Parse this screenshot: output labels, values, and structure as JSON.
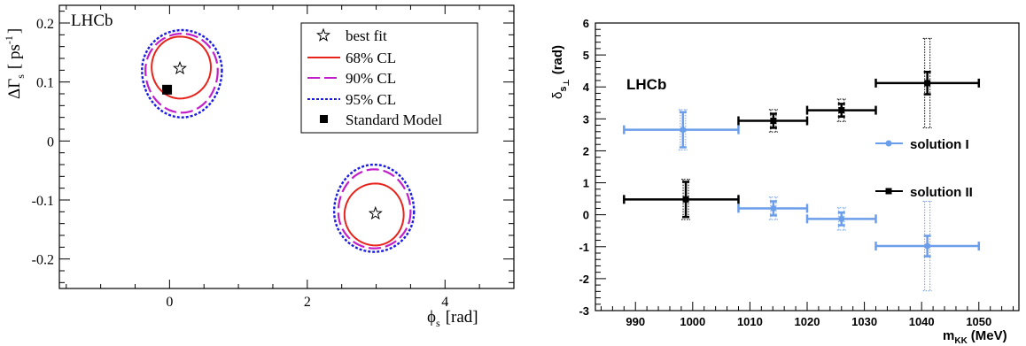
{
  "chart_data": [
    {
      "type": "contour",
      "title": "",
      "experiment_label": "LHCb",
      "xlabel": "ϕ",
      "xlabel_sub": "s",
      "xlabel_unit": "[rad]",
      "ylabel": "ΔΓ",
      "ylabel_sub": "s",
      "ylabel_unit": "[ ps",
      "ylabel_unit_sup": "-1",
      "ylabel_unit_close": "]",
      "xlim": [
        -1.6,
        5.0
      ],
      "ylim": [
        -0.25,
        0.23
      ],
      "xticks": [
        0,
        2,
        4
      ],
      "xtick_labels": [
        "0",
        "2",
        "4"
      ],
      "yticks": [
        -0.2,
        -0.1,
        0,
        0.1,
        0.2
      ],
      "ytick_labels": [
        "-0.2",
        "-0.1",
        "0",
        "0.1",
        "0.2"
      ],
      "legend_position": "top-right",
      "legend": [
        {
          "label": "best fit",
          "marker": "open-star"
        },
        {
          "label": "68% CL",
          "line": "solid",
          "color": "#e8231c"
        },
        {
          "label": "90% CL",
          "line": "long-dash",
          "color": "#c21fc9"
        },
        {
          "label": "95% CL",
          "line": "dotted",
          "color": "#1c1ce0"
        },
        {
          "label": "Standard Model",
          "marker": "filled-square"
        }
      ],
      "best_fit_points": [
        [
          0.15,
          0.123
        ],
        [
          2.99,
          -0.123
        ]
      ],
      "standard_model_point": [
        -0.036,
        0.087
      ],
      "contours": [
        {
          "level": "68% CL",
          "color": "#e8231c",
          "regions": [
            {
              "center": [
                0.15,
                0.125
              ],
              "half_width": [
                0.41,
                0.45
              ],
              "half_height": [
                0.052,
                0.053
              ]
            },
            {
              "center": [
                2.99,
                -0.125
              ],
              "half_width": [
                0.45,
                0.41
              ],
              "half_height": [
                0.053,
                0.052
              ]
            }
          ]
        },
        {
          "level": "90% CL",
          "color": "#c21fc9",
          "regions": [
            {
              "center": [
                0.18,
                0.12
              ],
              "half_width": [
                0.53,
                0.52
              ],
              "half_height": [
                0.062,
                0.072
              ]
            },
            {
              "center": [
                2.97,
                -0.12
              ],
              "half_width": [
                0.52,
                0.53
              ],
              "half_height": [
                0.072,
                0.062
              ]
            }
          ]
        },
        {
          "level": "95% CL",
          "color": "#1c1ce0",
          "regions": [
            {
              "center": [
                0.18,
                0.12
              ],
              "half_width": [
                0.58,
                0.58
              ],
              "half_height": [
                0.068,
                0.08
              ]
            },
            {
              "center": [
                2.97,
                -0.12
              ],
              "half_width": [
                0.58,
                0.58
              ],
              "half_height": [
                0.08,
                0.068
              ]
            }
          ]
        }
      ]
    },
    {
      "type": "scatter",
      "title": "",
      "experiment_label": "LHCb",
      "xlabel": "m",
      "xlabel_sub": "KK",
      "xlabel_unit": "(MeV)",
      "ylabel": "δ",
      "ylabel_sub": "s",
      "ylabel_subsub": "⊥",
      "ylabel_unit": "(rad)",
      "xlim": [
        983,
        1057
      ],
      "ylim": [
        -3,
        6
      ],
      "xticks": [
        990,
        1000,
        1010,
        1020,
        1030,
        1040,
        1050
      ],
      "xtick_labels": [
        "990",
        "1000",
        "1010",
        "1020",
        "1030",
        "1040",
        "1050"
      ],
      "yticks": [
        -3,
        -2,
        -1,
        0,
        1,
        2,
        3,
        4,
        5,
        6
      ],
      "ytick_labels": [
        "-3",
        "-2",
        "-1",
        "0",
        "1",
        "2",
        "3",
        "4",
        "5",
        "6"
      ],
      "legend_position": "right",
      "series": [
        {
          "name": "solution I",
          "color": "#6b9eea",
          "points": [
            {
              "x": 998.3,
              "xerr": [
                988,
                1008
              ],
              "y": 2.66,
              "yerr_stat": 0.55,
              "yerr_syst": 0.63
            },
            {
              "x": 1014.1,
              "xerr": [
                1008,
                1020
              ],
              "y": 0.2,
              "yerr_stat": 0.22,
              "yerr_syst": 0.35
            },
            {
              "x": 1026.0,
              "xerr": [
                1020,
                1032
              ],
              "y": -0.13,
              "yerr_stat": 0.2,
              "yerr_syst": 0.35
            },
            {
              "x": 1041.0,
              "xerr": [
                1032,
                1050
              ],
              "y": -0.98,
              "yerr_stat": 0.32,
              "yerr_syst": 1.4
            }
          ]
        },
        {
          "name": "solution II",
          "color": "#000000",
          "points": [
            {
              "x": 998.8,
              "xerr": [
                988,
                1008
              ],
              "y": 0.48,
              "yerr_stat": 0.55,
              "yerr_syst": 0.63
            },
            {
              "x": 1014.1,
              "xerr": [
                1008,
                1020
              ],
              "y": 2.94,
              "yerr_stat": 0.22,
              "yerr_syst": 0.35
            },
            {
              "x": 1026.0,
              "xerr": [
                1020,
                1032
              ],
              "y": 3.27,
              "yerr_stat": 0.2,
              "yerr_syst": 0.35
            },
            {
              "x": 1041.0,
              "xerr": [
                1032,
                1050
              ],
              "y": 4.12,
              "yerr_stat": 0.35,
              "yerr_syst": 1.4
            }
          ]
        }
      ]
    }
  ]
}
